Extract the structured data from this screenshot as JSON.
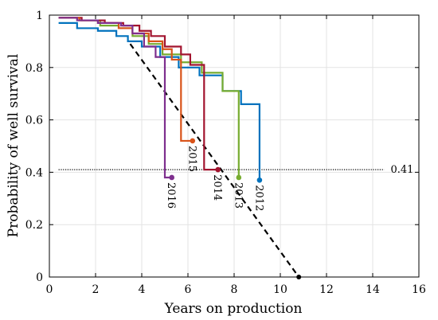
{
  "chart_data": {
    "type": "line",
    "title": "",
    "xlabel": "Years on production",
    "ylabel": "Probability of well survival",
    "xlim": [
      0,
      16
    ],
    "ylim": [
      0,
      1
    ],
    "xticks": [
      "0",
      "2",
      "4",
      "6",
      "8",
      "10",
      "12",
      "14",
      "16"
    ],
    "yticks": [
      "0",
      "0.2",
      "0.4",
      "0.6",
      "0.8",
      "1"
    ],
    "grid": true,
    "legend": "none",
    "reference_line": {
      "y": 0.41,
      "x_range": [
        0.4,
        14.5
      ],
      "label": "0.41",
      "style": "dotted",
      "color": "#000000"
    },
    "trend_line": {
      "style": "dashed",
      "color": "#000000",
      "x": [
        3.5,
        10.8
      ],
      "y": [
        0.89,
        0.0
      ]
    },
    "series": [
      {
        "label": "2012",
        "color": "#0072BD",
        "x": [
          0.4,
          1.2,
          2.1,
          2.9,
          3.4,
          4.0,
          4.8,
          5.6,
          6.5,
          7.5,
          8.3,
          9.1
        ],
        "y": [
          0.97,
          0.95,
          0.94,
          0.92,
          0.9,
          0.88,
          0.84,
          0.8,
          0.77,
          0.71,
          0.66,
          0.37
        ],
        "end": [
          9.1,
          0.37
        ]
      },
      {
        "label": "2013",
        "color": "#77AC30",
        "x": [
          0.4,
          1.3,
          2.2,
          3.0,
          3.6,
          4.3,
          4.9,
          5.7,
          6.6,
          7.5,
          8.2
        ],
        "y": [
          0.99,
          0.98,
          0.96,
          0.95,
          0.92,
          0.89,
          0.85,
          0.82,
          0.78,
          0.71,
          0.38
        ],
        "end": [
          8.2,
          0.38
        ]
      },
      {
        "label": "2014",
        "color": "#A2142F",
        "x": [
          0.4,
          1.4,
          2.4,
          3.2,
          3.9,
          4.4,
          5.0,
          5.7,
          6.1,
          6.7,
          7.3
        ],
        "y": [
          0.99,
          0.98,
          0.97,
          0.96,
          0.94,
          0.92,
          0.88,
          0.85,
          0.81,
          0.41,
          0.41
        ],
        "end": [
          7.3,
          0.41
        ]
      },
      {
        "label": "2015",
        "color": "#D95319",
        "x": [
          0.4,
          1.3,
          2.1,
          3.0,
          3.6,
          4.3,
          4.9,
          5.3,
          5.7,
          6.2
        ],
        "y": [
          0.99,
          0.98,
          0.97,
          0.95,
          0.93,
          0.9,
          0.87,
          0.83,
          0.52,
          0.52
        ],
        "end": [
          6.2,
          0.52
        ]
      },
      {
        "label": "2016",
        "color": "#7E2F8E",
        "x": [
          0.4,
          1.2,
          2.1,
          3.1,
          3.6,
          4.1,
          4.6,
          5.0,
          5.3
        ],
        "y": [
          0.99,
          0.98,
          0.97,
          0.96,
          0.93,
          0.88,
          0.84,
          0.38,
          0.38
        ],
        "end": [
          5.3,
          0.38
        ]
      }
    ]
  }
}
